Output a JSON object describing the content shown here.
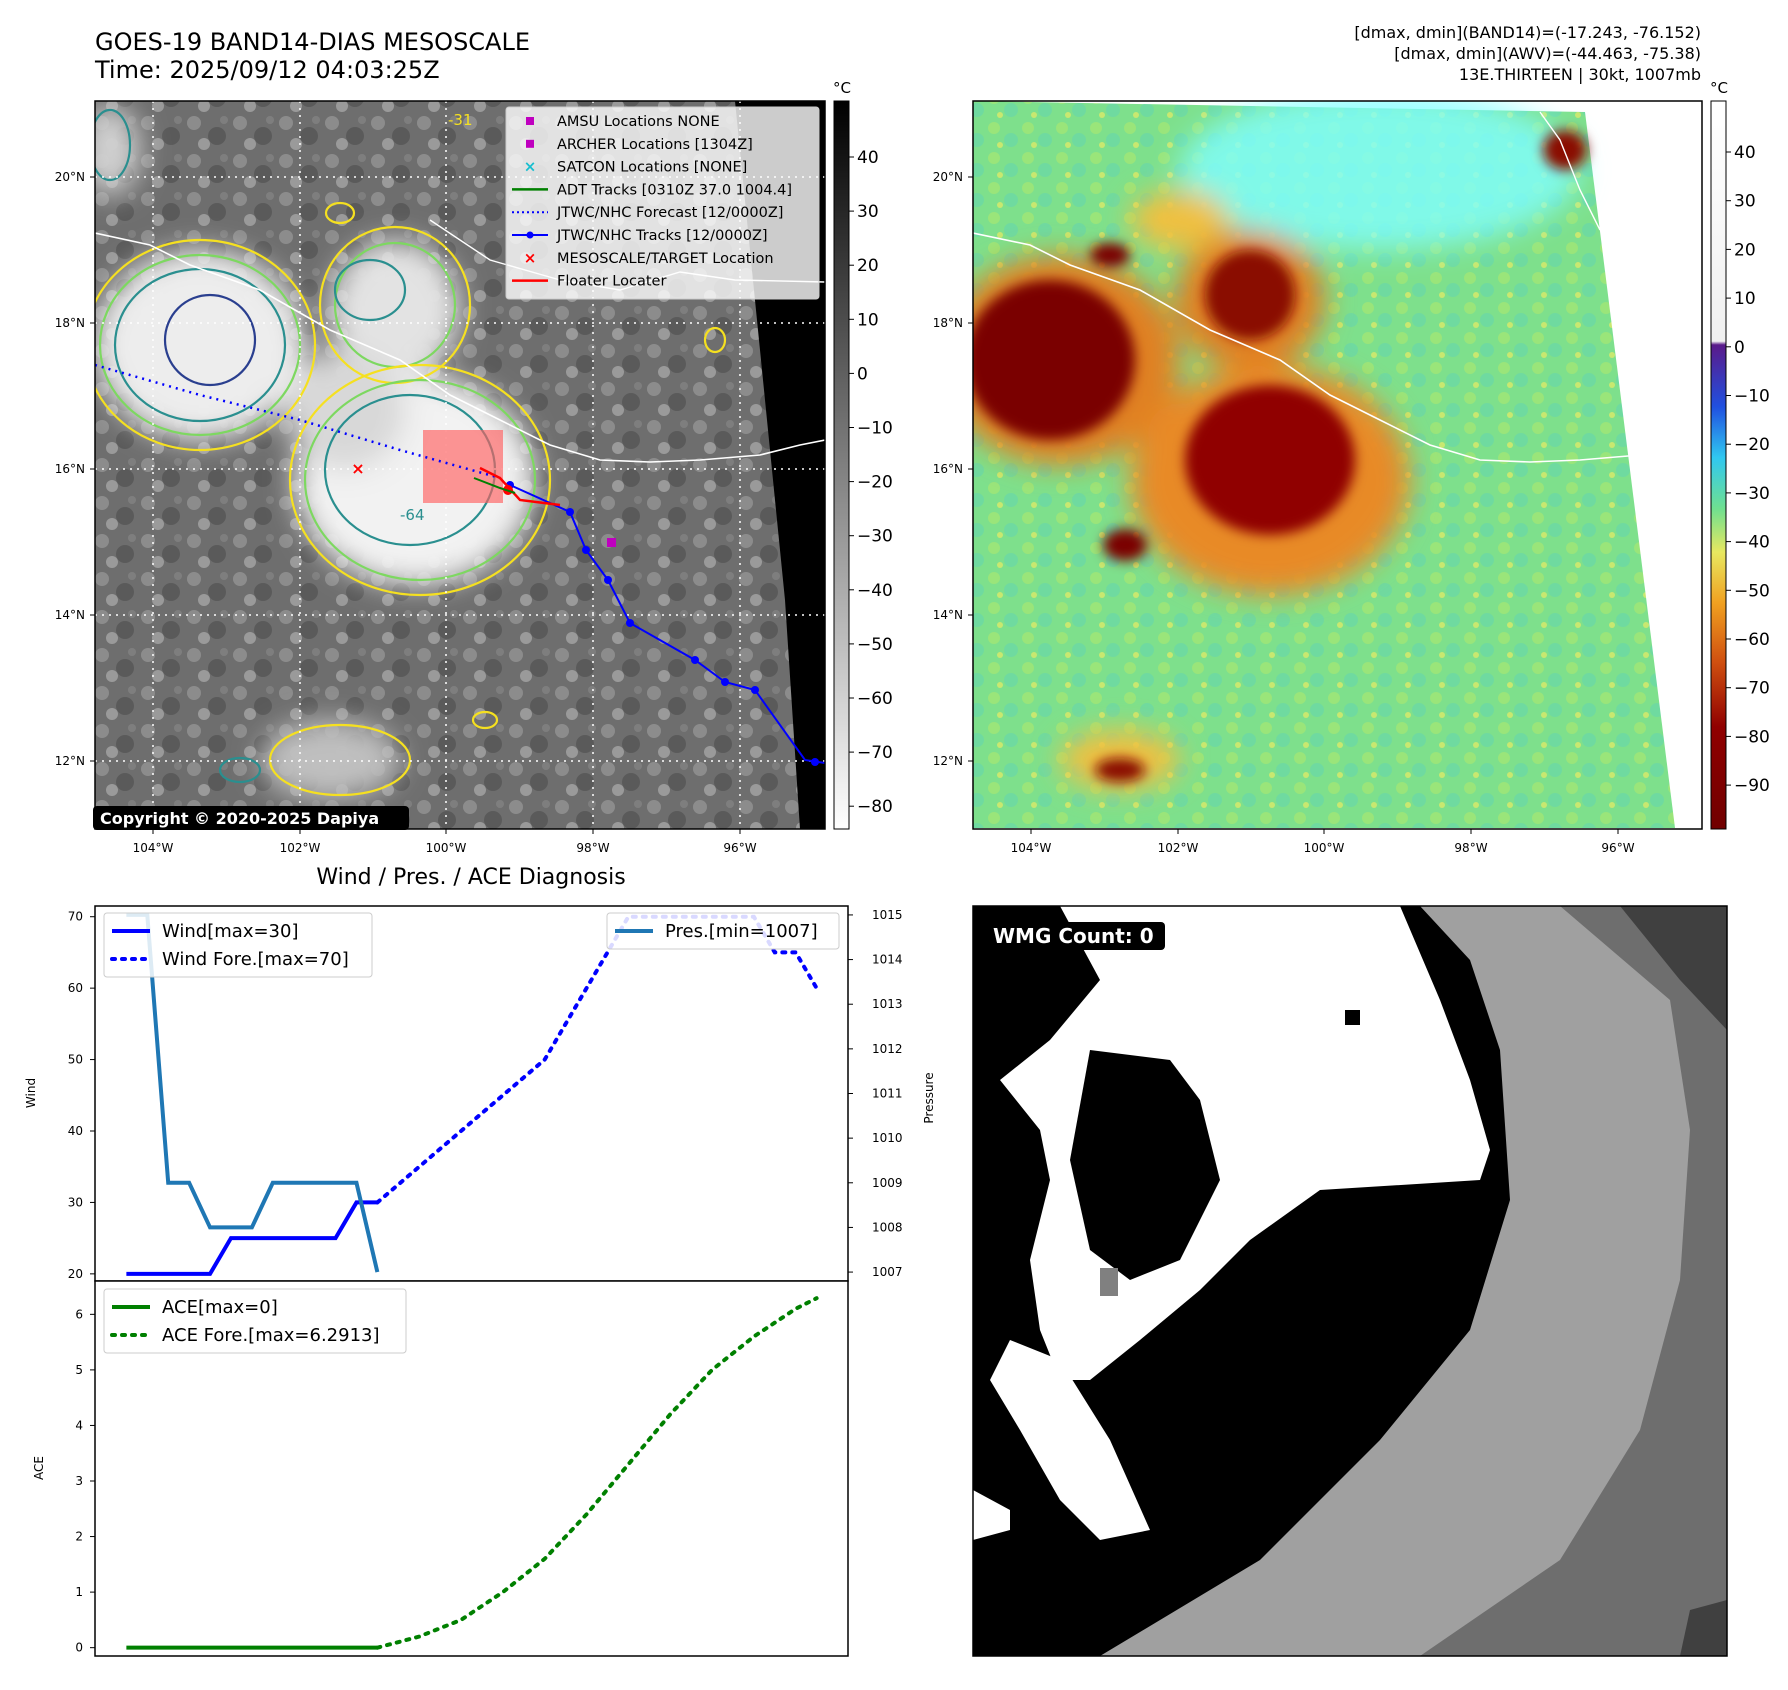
{
  "title": {
    "line1": "GOES-19 BAND14-DIAS MESOSCALE",
    "line2": "Time: 2025/09/12 04:03:25Z"
  },
  "info": {
    "line1": "[dmax, dmin](BAND14)=(-17.243, -76.152)",
    "line2": "[dmax, dmin](AWV)=(-44.463, -75.38)",
    "line3": "13E.THIRTEEN | 30kt, 1007mb"
  },
  "maps": {
    "lat_labels": [
      "20°N",
      "18°N",
      "16°N",
      "14°N",
      "12°N"
    ],
    "lon_labels": [
      "104°W",
      "102°W",
      "100°W",
      "98°W",
      "96°W"
    ],
    "copyright": "Copyright © 2020-2025 Dapiya",
    "contour_labels": [
      "-31",
      "-64"
    ],
    "legend": [
      {
        "label": "AMSU Locations NONE",
        "marker": "square",
        "color": "#bf00bf"
      },
      {
        "label": "ARCHER Locations [1304Z]",
        "marker": "square",
        "color": "#bf00bf"
      },
      {
        "label": "SATCON Locations [NONE]",
        "marker": "x",
        "color": "#17becf"
      },
      {
        "label": "ADT Tracks [0310Z 37.0 1004.4]",
        "marker": "line",
        "color": "#008000"
      },
      {
        "label": "JTWC/NHC Forecast [12/0000Z]",
        "marker": "dotted",
        "color": "#0000ff"
      },
      {
        "label": "JTWC/NHC Tracks [12/0000Z]",
        "marker": "line-dot",
        "color": "#0000ff"
      },
      {
        "label": "MESOSCALE/TARGET Location",
        "marker": "x",
        "color": "#ff0000"
      },
      {
        "label": "Floater Locater",
        "marker": "line",
        "color": "#ff0000"
      }
    ]
  },
  "colorbar_left": {
    "unit": "°C",
    "ticks": [
      "40",
      "30",
      "20",
      "10",
      "0",
      "−10",
      "−20",
      "−30",
      "−40",
      "−50",
      "−60",
      "−70",
      "−80"
    ]
  },
  "colorbar_right": {
    "unit": "°C",
    "ticks": [
      "40",
      "30",
      "20",
      "10",
      "0",
      "−10",
      "−20",
      "−30",
      "−40",
      "−50",
      "−60",
      "−70",
      "−80",
      "−90"
    ]
  },
  "wmg": {
    "label": "WMG Count: 0"
  },
  "chart_data": [
    {
      "type": "line",
      "title": "Wind / Pres. / ACE Diagnosis",
      "ylabel": "Wind",
      "y2label": "Pressure",
      "ylim": [
        19,
        71.5
      ],
      "y2lim": [
        1006.8,
        1015.2
      ],
      "yticks": [
        "20",
        "30",
        "40",
        "50",
        "60",
        "70"
      ],
      "y2ticks": [
        "1007",
        "1008",
        "1009",
        "1010",
        "1011",
        "1012",
        "1013",
        "1014",
        "1015"
      ],
      "legend_left": [
        "Wind[max=30]",
        "Wind Fore.[max=70]"
      ],
      "legend_right": [
        "Pres.[min=1007]"
      ],
      "series": [
        {
          "name": "Wind[max=30]",
          "color": "#0000ff",
          "style": "solid",
          "x": [
            0,
            1,
            2,
            3,
            4,
            5,
            6,
            7,
            8,
            9,
            10,
            11,
            12
          ],
          "values": [
            20,
            20,
            20,
            20,
            20,
            25,
            25,
            25,
            25,
            25,
            25,
            30,
            30
          ]
        },
        {
          "name": "Wind Fore.[max=70]",
          "color": "#0000ff",
          "style": "dotted",
          "x": [
            12,
            14,
            16,
            18,
            20,
            22,
            24,
            26,
            28,
            30,
            31,
            32,
            33
          ],
          "values": [
            30,
            35,
            40,
            45,
            50,
            60,
            70,
            70,
            70,
            70,
            65,
            65,
            60
          ]
        },
        {
          "name": "Pres.[min=1007]",
          "color": "#1f77b4",
          "style": "solid",
          "axis": "right",
          "x": [
            0,
            1,
            2,
            3,
            4,
            5,
            6,
            7,
            8,
            9,
            10,
            11,
            12
          ],
          "values": [
            1015,
            1015,
            1009,
            1009,
            1008,
            1008,
            1008,
            1009,
            1009,
            1009,
            1009,
            1009,
            1007
          ]
        }
      ]
    },
    {
      "type": "line",
      "ylabel": "ACE",
      "ylim": [
        -0.15,
        6.6
      ],
      "yticks": [
        "0",
        "1",
        "2",
        "3",
        "4",
        "5",
        "6"
      ],
      "legend": [
        "ACE[max=0]",
        "ACE Fore.[max=6.2913]"
      ],
      "series": [
        {
          "name": "ACE[max=0]",
          "color": "#008000",
          "style": "solid",
          "x": [
            0,
            12
          ],
          "values": [
            0,
            0
          ]
        },
        {
          "name": "ACE Fore.[max=6.2913]",
          "color": "#008000",
          "style": "dotted",
          "x": [
            12,
            14,
            16,
            18,
            20,
            22,
            24,
            26,
            28,
            30,
            32,
            33
          ],
          "values": [
            0,
            0.2,
            0.5,
            1.0,
            1.6,
            2.4,
            3.3,
            4.2,
            5.0,
            5.6,
            6.1,
            6.29
          ]
        }
      ]
    }
  ]
}
